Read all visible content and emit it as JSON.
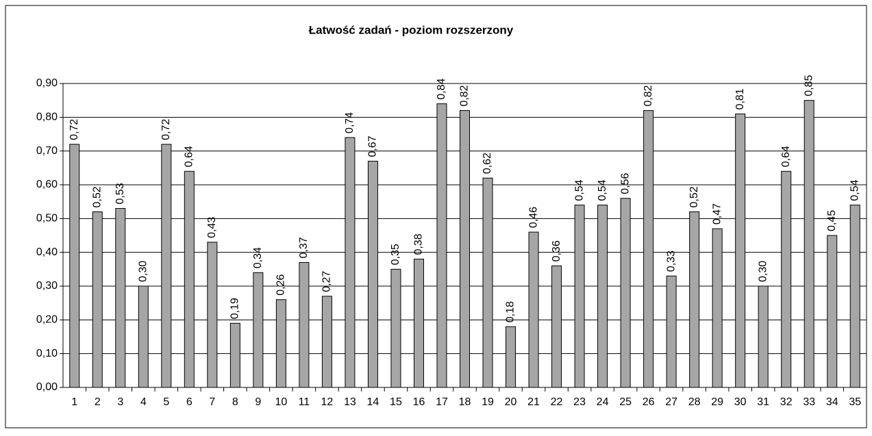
{
  "chart_data": {
    "type": "bar",
    "title": "Łatwość zadań - poziom rozszerzony",
    "categories": [
      "1",
      "2",
      "3",
      "4",
      "5",
      "6",
      "7",
      "8",
      "9",
      "10",
      "11",
      "12",
      "13",
      "14",
      "15",
      "16",
      "17",
      "18",
      "19",
      "20",
      "21",
      "22",
      "23",
      "24",
      "25",
      "26",
      "27",
      "28",
      "29",
      "30",
      "31",
      "32",
      "33",
      "34",
      "35"
    ],
    "values": [
      0.72,
      0.52,
      0.53,
      0.3,
      0.72,
      0.64,
      0.43,
      0.19,
      0.34,
      0.26,
      0.37,
      0.27,
      0.74,
      0.67,
      0.35,
      0.38,
      0.84,
      0.82,
      0.62,
      0.18,
      0.46,
      0.36,
      0.54,
      0.54,
      0.56,
      0.82,
      0.33,
      0.52,
      0.47,
      0.81,
      0.3,
      0.64,
      0.85,
      0.45,
      0.54
    ],
    "value_labels": [
      "0,72",
      "0,52",
      "0,53",
      "0,30",
      "0,72",
      "0,64",
      "0,43",
      "0,19",
      "0,34",
      "0,26",
      "0,37",
      "0,27",
      "0,74",
      "0,67",
      "0,35",
      "0,38",
      "0,84",
      "0,82",
      "0,62",
      "0,18",
      "0,46",
      "0,36",
      "0,54",
      "0,54",
      "0,56",
      "0,82",
      "0,33",
      "0,52",
      "0,47",
      "0,81",
      "0,30",
      "0,64",
      "0,85",
      "0,45",
      "0,54"
    ],
    "color": "#a6a6a6",
    "ylim": [
      0,
      0.9
    ],
    "yticks": [
      {
        "value": 0,
        "label": "0,00"
      },
      {
        "value": 0.1,
        "label": "0,10"
      },
      {
        "value": 0.2,
        "label": "0,20"
      },
      {
        "value": 0.3,
        "label": "0,30"
      },
      {
        "value": 0.4,
        "label": "0,40"
      },
      {
        "value": 0.5,
        "label": "0,50"
      },
      {
        "value": 0.6,
        "label": "0,60"
      },
      {
        "value": 0.7,
        "label": "0,70"
      },
      {
        "value": 0.8,
        "label": "0,80"
      },
      {
        "value": 0.9,
        "label": "0,90"
      }
    ],
    "grid": true
  }
}
